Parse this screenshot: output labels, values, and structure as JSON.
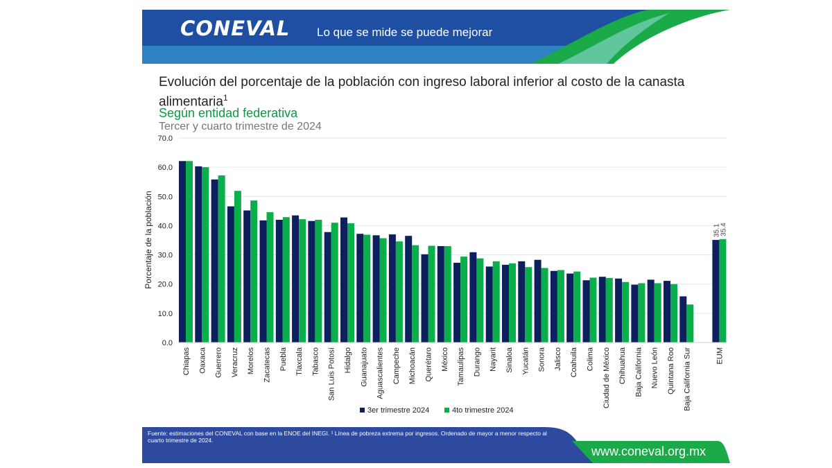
{
  "header": {
    "logo": "CONEVAL",
    "slogan": "Lo que se mide se puede mejorar"
  },
  "title": "Evolución del porcentaje de la población con ingreso laboral inferior al costo de la canasta alimentaria",
  "title_sup": "1",
  "subtitle": "Según entidad federativa",
  "subtitle2": "Tercer y cuarto trimestre de 2024",
  "footer": {
    "source": "Fuente: estimaciones del CONEVAL con base en la ENOE del INEGI. ¹ Línea de pobreza extrema por ingresos. Ordenado de mayor a menor respecto al cuarto trimestre de 2024.",
    "url": "www.coneval.org.mx"
  },
  "colors": {
    "series1": "#0d1f5c",
    "series2": "#0aaf4c",
    "header_blue": "#1f4fa3",
    "footer_blue": "#2e4a9e",
    "accent_green": "#1aaa4a"
  },
  "chart_data": {
    "type": "bar",
    "ylabel": "Porcentaje de la población",
    "ylim": [
      0,
      70
    ],
    "yticks": [
      "0.0",
      "10.0",
      "20.0",
      "30.0",
      "40.0",
      "50.0",
      "60.0",
      "70.0"
    ],
    "grid": true,
    "legend_position": "bottom",
    "categories": [
      "Chiapas",
      "Oaxaca",
      "Guerrero",
      "Veracruz",
      "Morelos",
      "Zacatecas",
      "Puebla",
      "Tlaxcala",
      "Tabasco",
      "San Luis Potosí",
      "Hidalgo",
      "Guanajuato",
      "Aguascalientes",
      "Campeche",
      "Michoacán",
      "Querétaro",
      "México",
      "Tamaulipas",
      "Durango",
      "Nayarit",
      "Sinaloa",
      "Yucatán",
      "Sonora",
      "Jalisco",
      "Coahuila",
      "Colima",
      "Ciudad de México",
      "Chihuahua",
      "Baja California",
      "Nuevo León",
      "Quintana Roo",
      "Baja California Sur",
      "EUM"
    ],
    "series": [
      {
        "name": "3er trimestre 2024",
        "values": [
          62.1,
          60.3,
          55.8,
          46.6,
          45.2,
          41.8,
          42.0,
          43.5,
          41.6,
          37.8,
          42.8,
          37.2,
          36.7,
          37.0,
          36.5,
          30.2,
          33.0,
          27.3,
          30.9,
          26.0,
          26.6,
          27.8,
          28.3,
          24.5,
          23.6,
          21.3,
          22.5,
          21.9,
          19.8,
          21.5,
          21.1,
          15.8,
          35.1
        ]
      },
      {
        "name": "4to trimestre 2024",
        "values": [
          62.1,
          60.0,
          57.2,
          51.9,
          48.6,
          44.6,
          42.9,
          42.2,
          42.0,
          41.0,
          40.8,
          36.9,
          35.7,
          34.6,
          33.3,
          33.1,
          33.0,
          29.4,
          28.8,
          27.8,
          27.1,
          25.8,
          25.5,
          24.8,
          24.3,
          22.2,
          22.1,
          20.7,
          20.3,
          20.3,
          20.0,
          13.0,
          35.4
        ]
      }
    ],
    "data_labels": {
      "EUM": [
        "35.1",
        "35.4"
      ]
    }
  }
}
